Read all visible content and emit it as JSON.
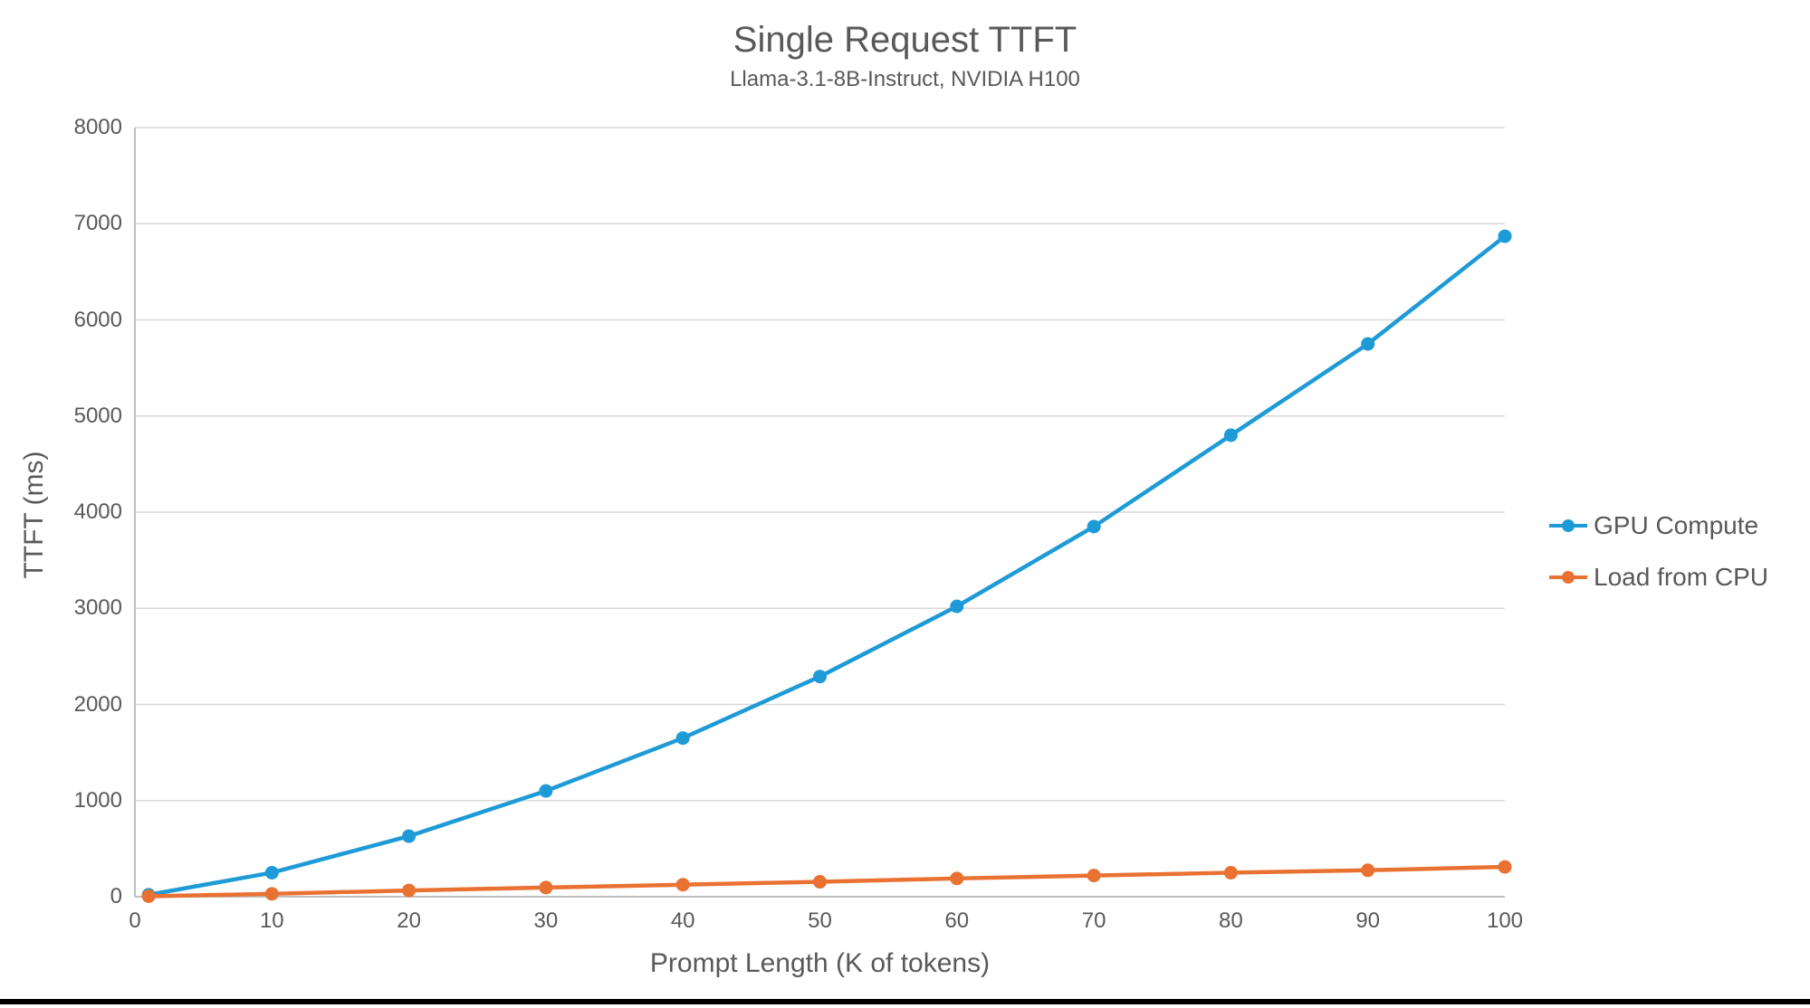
{
  "page": {
    "background_color": "#FFFFFF",
    "bottom_bar_color": "#000000"
  },
  "chart_data": {
    "type": "line",
    "title": "Single Request TTFT",
    "subtitle": "Llama-3.1-8B-Instruct, NVIDIA H100",
    "xlabel": "Prompt Length (K of tokens)",
    "ylabel": "TTFT (ms)",
    "xlim": [
      0,
      100
    ],
    "ylim": [
      0,
      8000
    ],
    "x_ticks": [
      0,
      10,
      20,
      30,
      40,
      50,
      60,
      70,
      80,
      90,
      100
    ],
    "y_ticks": [
      0,
      1000,
      2000,
      3000,
      4000,
      5000,
      6000,
      7000,
      8000
    ],
    "grid": "horizontal-only",
    "legend_position": "right",
    "x": [
      1,
      10,
      20,
      30,
      40,
      50,
      60,
      70,
      80,
      90,
      100
    ],
    "series": [
      {
        "name": "GPU Compute",
        "color": "#1E9BD7",
        "values": [
          20,
          250,
          630,
          1100,
          1650,
          2290,
          3020,
          3850,
          4800,
          5750,
          6870
        ]
      },
      {
        "name": "Load from CPU",
        "color": "#E97132",
        "values": [
          5,
          30,
          65,
          95,
          125,
          155,
          190,
          220,
          250,
          275,
          310
        ]
      }
    ],
    "styles": {
      "text_color": "#595959",
      "gridline_color": "#D9D9D9",
      "axis_color": "#BFBFBF"
    }
  }
}
